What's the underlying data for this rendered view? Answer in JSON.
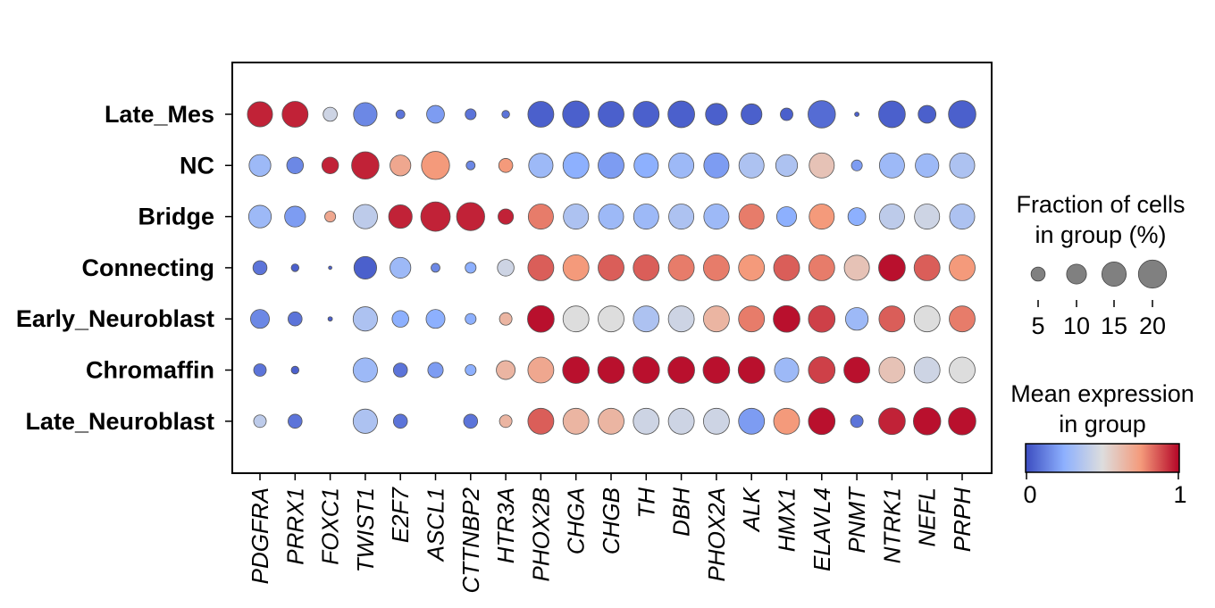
{
  "chart_data": {
    "type": "dotplot",
    "genes": [
      "PDGFRA",
      "PRRX1",
      "FOXC1",
      "TWIST1",
      "E2F7",
      "ASCL1",
      "CTTNBP2",
      "HTR3A",
      "PHOX2B",
      "CHGA",
      "CHGB",
      "TH",
      "DBH",
      "PHOX2A",
      "ALK",
      "HMX1",
      "ELAVL4",
      "PNMT",
      "NTRK1",
      "NEFL",
      "PRPH"
    ],
    "groups": [
      "Late_Mes",
      "NC",
      "Bridge",
      "Connecting",
      "Early_Neuroblast",
      "Chromaffin",
      "Late_Neuroblast"
    ],
    "fraction": [
      [
        16,
        17,
        5,
        14,
        2,
        8,
        3,
        1.5,
        17,
        18,
        17,
        17,
        18,
        12,
        11,
        4,
        19,
        0.5,
        18,
        8,
        19
      ],
      [
        12,
        7,
        7,
        19,
        11,
        20,
        2,
        5,
        15,
        17,
        17,
        15,
        16,
        16,
        16,
        12,
        16,
        3,
        16,
        14,
        16
      ],
      [
        13,
        11,
        3,
        15,
        14,
        22,
        20,
        6,
        16,
        16,
        16,
        16,
        16,
        16,
        16,
        10,
        16,
        8,
        16,
        16,
        16
      ],
      [
        5,
        1.5,
        0.3,
        13,
        11,
        2,
        3,
        7,
        17,
        17,
        17,
        17,
        17,
        17,
        17,
        17,
        17,
        16,
        18,
        17,
        17
      ],
      [
        9,
        5,
        0.5,
        15,
        7,
        9,
        3,
        4,
        18,
        17,
        17,
        17,
        17,
        17,
        17,
        18,
        18,
        13,
        17,
        17,
        17
      ],
      [
        4,
        1.5,
        0,
        15,
        5,
        6,
        3,
        9,
        17,
        18,
        18,
        18,
        18,
        18,
        18,
        15,
        18,
        17,
        17,
        17,
        17
      ],
      [
        4,
        5,
        0,
        15,
        5,
        0,
        5,
        4,
        17,
        17,
        17,
        17,
        17,
        17,
        17,
        17,
        18,
        4,
        18,
        19,
        19
      ]
    ],
    "expression": [
      [
        0.95,
        0.95,
        0.45,
        0.15,
        0.1,
        0.2,
        0.1,
        0.1,
        0.05,
        0.05,
        0.05,
        0.05,
        0.05,
        0.05,
        0.05,
        0.05,
        0.08,
        0.05,
        0.05,
        0.05,
        0.05
      ],
      [
        0.3,
        0.15,
        0.95,
        0.95,
        0.7,
        0.75,
        0.15,
        0.75,
        0.3,
        0.25,
        0.2,
        0.25,
        0.3,
        0.2,
        0.35,
        0.35,
        0.6,
        0.2,
        0.3,
        0.3,
        0.35
      ],
      [
        0.3,
        0.2,
        0.7,
        0.4,
        0.95,
        0.95,
        0.95,
        0.95,
        0.8,
        0.35,
        0.3,
        0.3,
        0.35,
        0.3,
        0.8,
        0.25,
        0.75,
        0.25,
        0.4,
        0.45,
        0.35
      ],
      [
        0.1,
        0.05,
        0.05,
        0.05,
        0.3,
        0.15,
        0.25,
        0.45,
        0.85,
        0.75,
        0.85,
        0.85,
        0.8,
        0.8,
        0.75,
        0.85,
        0.8,
        0.6,
        0.98,
        0.85,
        0.75
      ],
      [
        0.15,
        0.1,
        0.05,
        0.35,
        0.25,
        0.25,
        0.25,
        0.65,
        0.98,
        0.5,
        0.5,
        0.35,
        0.45,
        0.65,
        0.8,
        0.98,
        0.9,
        0.3,
        0.85,
        0.5,
        0.8
      ],
      [
        0.1,
        0.05,
        0.05,
        0.3,
        0.1,
        0.2,
        0.25,
        0.65,
        0.7,
        0.98,
        0.98,
        0.98,
        0.98,
        0.98,
        0.98,
        0.3,
        0.9,
        0.98,
        0.6,
        0.45,
        0.5
      ],
      [
        0.4,
        0.1,
        0.05,
        0.35,
        0.1,
        0.05,
        0.1,
        0.65,
        0.85,
        0.65,
        0.65,
        0.45,
        0.45,
        0.45,
        0.2,
        0.75,
        0.98,
        0.1,
        0.95,
        0.98,
        0.98
      ]
    ],
    "size_legend": {
      "title_line1": "Fraction of cells",
      "title_line2": "in group (%)",
      "ticks": [
        5,
        10,
        15,
        20
      ],
      "tick_labels": [
        "5",
        "10",
        "15",
        "20"
      ]
    },
    "color_legend": {
      "title_line1": "Mean expression",
      "title_line2": "in group",
      "min_label": "0",
      "max_label": "1",
      "colormap": "coolwarm",
      "stops": [
        "#3b4cc0",
        "#8db0fe",
        "#dddddd",
        "#f49a7b",
        "#b40426"
      ]
    },
    "dot_edge_color": "#555555",
    "legend_dot_color": "#808080"
  }
}
